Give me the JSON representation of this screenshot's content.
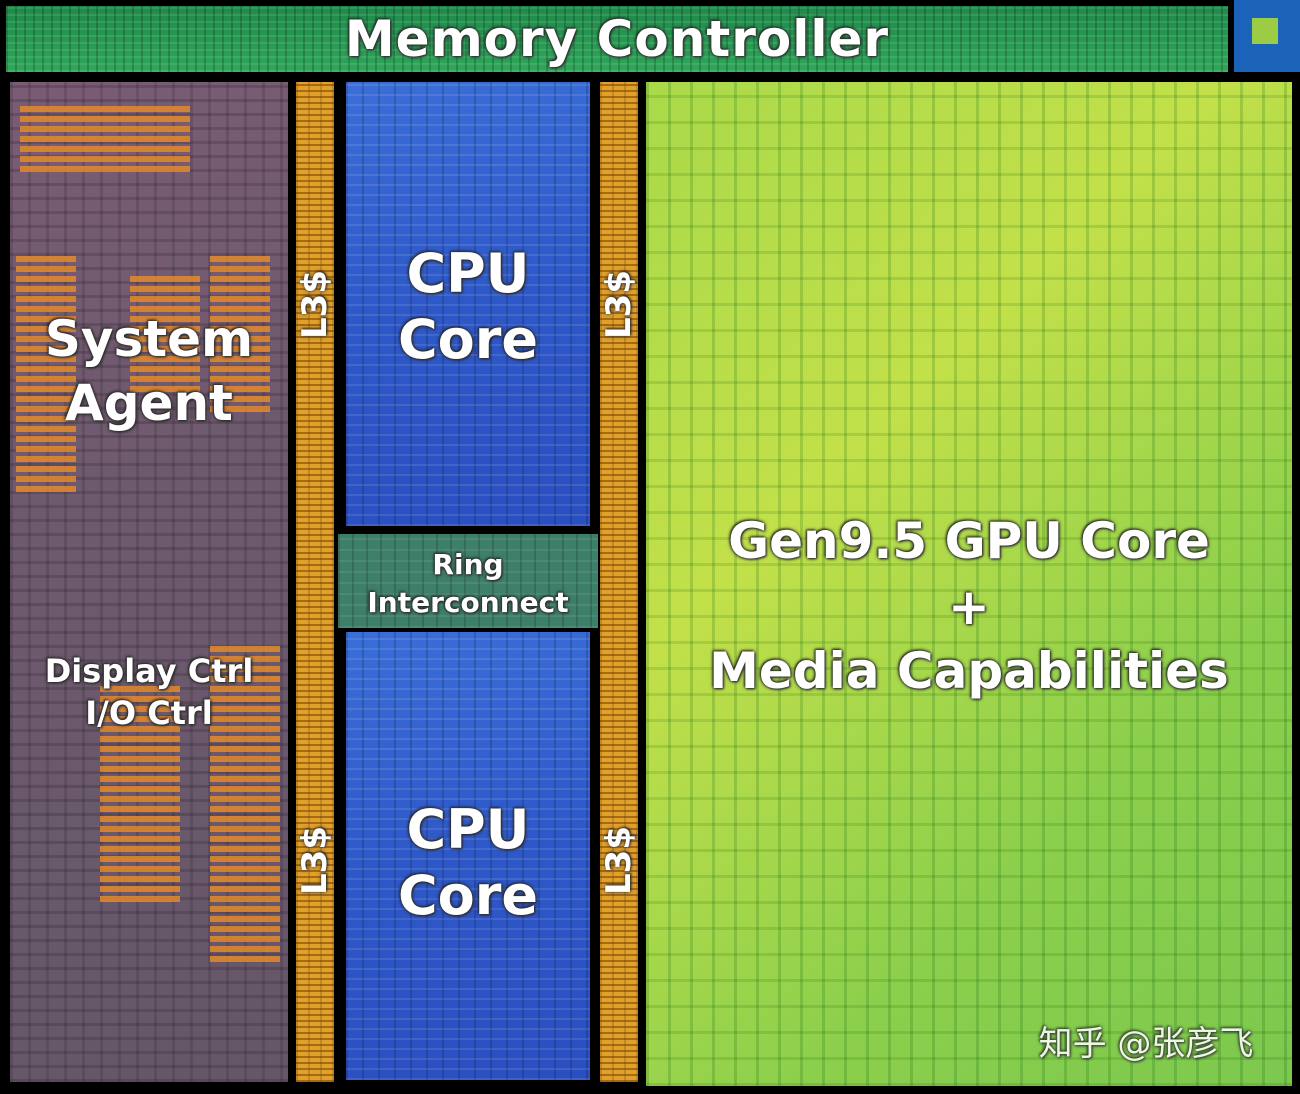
{
  "memory_controller": {
    "label": "Memory Controller"
  },
  "system_agent": {
    "label_line1": "System",
    "label_line2": "Agent",
    "sub_line1": "Display Ctrl",
    "sub_line2": "I/O Ctrl"
  },
  "l3": {
    "label": "L3$"
  },
  "cpu_core_top": {
    "line1": "CPU",
    "line2": "Core"
  },
  "cpu_core_bottom": {
    "line1": "CPU",
    "line2": "Core"
  },
  "ring": {
    "line1": "Ring",
    "line2": "Interconnect"
  },
  "gpu": {
    "line1": "Gen9.5 GPU Core",
    "line2": "+",
    "line3": "Media Capabilities"
  },
  "watermark": "知乎 @张彦飞",
  "colors": {
    "memory_controller": "#2fa75a",
    "system_agent": "#6e5a6e",
    "l3": "#e0a12a",
    "cpu": "#2e58c8",
    "ring": "#3e7f6a",
    "gpu": "#a9d94a"
  }
}
